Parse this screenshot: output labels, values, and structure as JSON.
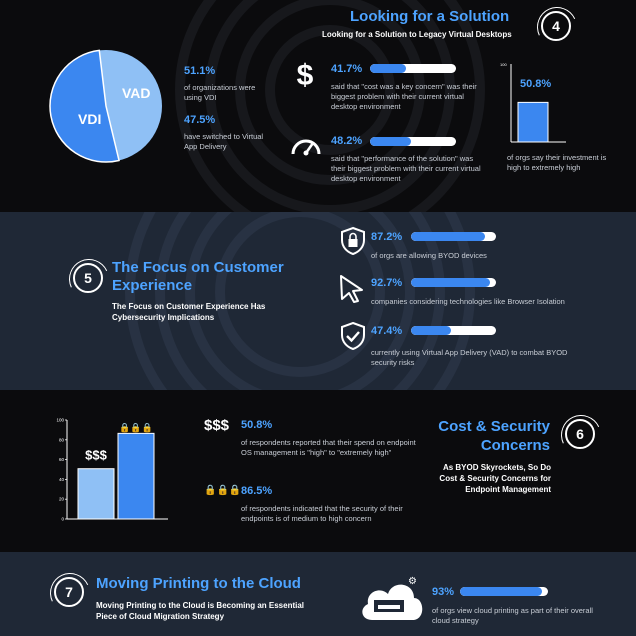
{
  "s4": {
    "number": "4",
    "title": "Looking for a Solution",
    "subtitle": "Looking for a Solution to Legacy  Virtual Desktops",
    "pie": {
      "label_a": "VDI",
      "label_b": "VAD",
      "value_a": 51.1,
      "value_b": 47.5,
      "color_a": "#3b87f0",
      "color_b": "#8fc0f5"
    },
    "stat1": {
      "value": "51.1%",
      "text": "of organizations were using VDI"
    },
    "stat2": {
      "value": "47.5%",
      "text": "have switched to Virtual App Delivery"
    },
    "stat3": {
      "value": "41.7%",
      "fraction": 0.417,
      "text": "said that \"cost was a key concern\" was their biggest problem with their current virtual desktop environment",
      "icon": "dollar-icon"
    },
    "stat4": {
      "value": "48.2%",
      "fraction": 0.482,
      "text": "said that \"performance of the solution\" was their biggest problem with their current virtual desktop environment",
      "icon": "speedometer-icon"
    },
    "mini_chart": {
      "value": "50.8%",
      "fraction": 0.508,
      "axis_top": "100",
      "text": "of orgs say their investment is high to extremely high"
    }
  },
  "s5": {
    "number": "5",
    "title": "The Focus on Customer Experience",
    "subtitle": "The Focus on Customer Experience Has Cybersecurity Implications",
    "items": [
      {
        "value": "87.2%",
        "fraction": 0.872,
        "text": "of orgs are allowing BYOD devices",
        "icon": "shield-lock-icon"
      },
      {
        "value": "92.7%",
        "fraction": 0.927,
        "text": "companies considering technologies like Browser Isolation",
        "icon": "cursor-icon"
      },
      {
        "value": "47.4%",
        "fraction": 0.474,
        "text": "currently using Virtual App Delivery (VAD) to combat BYOD security risks",
        "icon": "shield-check-icon"
      }
    ]
  },
  "s6": {
    "number": "6",
    "title": "Cost & Security Concerns",
    "subtitle": "As BYOD Skyrockets, So Do Cost & Security Concerns for Endpoint Management",
    "chart_data": {
      "type": "bar",
      "categories": [
        "$$$",
        "🔒🔒🔒"
      ],
      "values": [
        50.8,
        86.5
      ],
      "ylim": [
        0,
        100
      ],
      "yticks": [
        "100",
        "80",
        "60",
        "40",
        "20",
        "0"
      ]
    },
    "stat1": {
      "symbol": "$$$",
      "value": "50.8%",
      "text": "of respondents reported that their spend on endpoint OS management is \"high\" to \"extremely high\""
    },
    "stat2": {
      "symbol": "🔒🔒🔒",
      "value": "86.5%",
      "text": "of respondents indicated that the security of their endpoints is of medium to high concern"
    }
  },
  "s7": {
    "number": "7",
    "title": "Moving Printing to the Cloud",
    "subtitle": "Moving Printing to the Cloud is Becoming an Essential Piece of Cloud Migration Strategy",
    "stat": {
      "value": "93%",
      "fraction": 0.93,
      "text": "of orgs view cloud printing as part of their overall cloud strategy",
      "icon": "cloud-printer-icon"
    }
  },
  "colors": {
    "accent": "#4da3ff",
    "bar_fill": "#3b87f0",
    "band": "#1f2836"
  }
}
